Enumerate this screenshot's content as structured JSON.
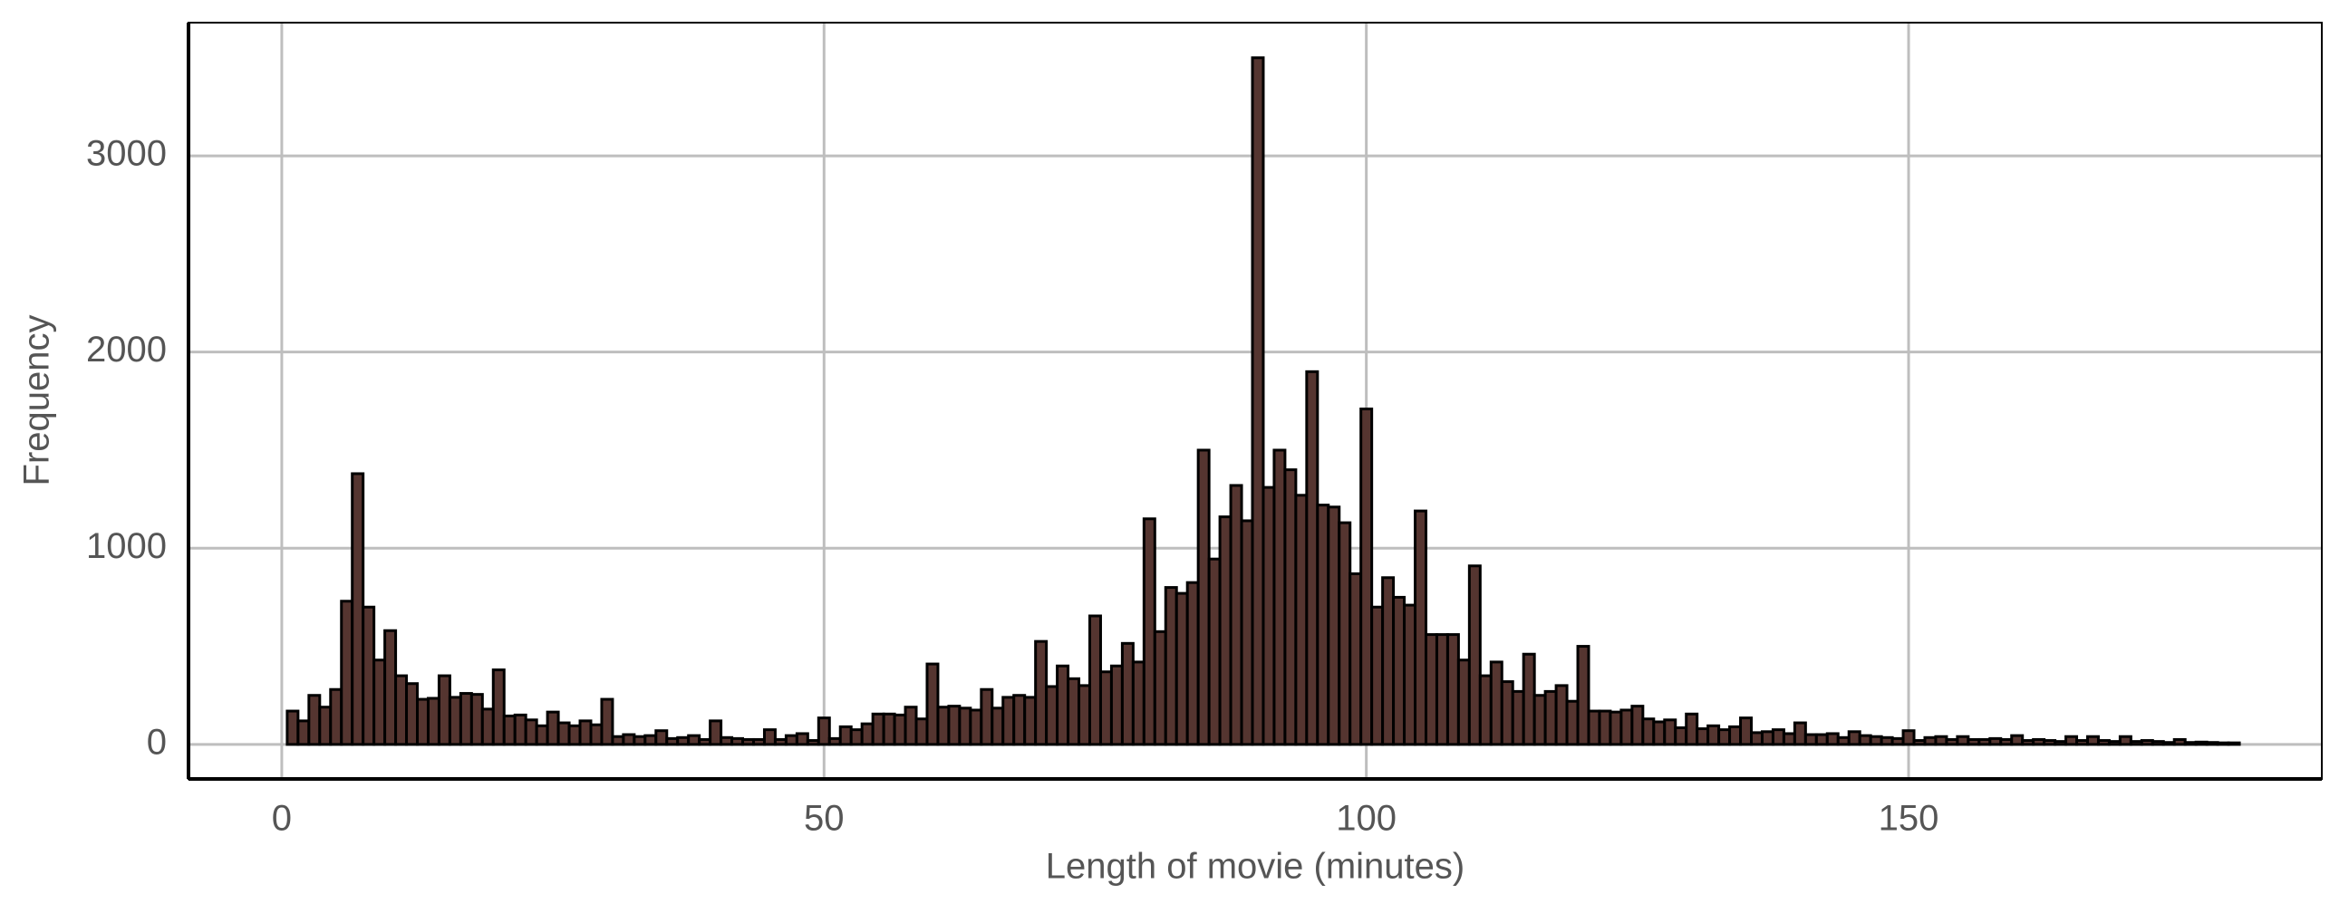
{
  "chart_data": {
    "type": "histogram",
    "x_label": "Length of movie (minutes)",
    "y_label": "Frequency",
    "color": "#553530",
    "edge_color": "#000000",
    "grid": true,
    "xlim": [
      -8.6,
      188.1
    ],
    "ylim": [
      -176,
      3679
    ],
    "xticks": [
      0,
      50,
      100,
      150
    ],
    "yticks": [
      0,
      1000,
      2000,
      3000
    ],
    "bins": [
      0.5,
      1.5,
      2.5,
      3.5,
      4.5,
      5.5,
      6.5,
      7.5,
      8.5,
      9.5,
      10.5,
      11.5,
      12.5,
      13.5,
      14.5,
      15.5,
      16.5,
      17.5,
      18.5,
      19.5,
      20.5,
      21.5,
      22.5,
      23.5,
      24.5,
      25.5,
      26.5,
      27.5,
      28.5,
      29.5,
      30.5,
      31.5,
      32.5,
      33.5,
      34.5,
      35.5,
      36.5,
      37.5,
      38.5,
      39.5,
      40.5,
      41.5,
      42.5,
      43.5,
      44.5,
      45.5,
      46.5,
      47.5,
      48.5,
      49.5,
      50.5,
      51.5,
      52.5,
      53.5,
      54.5,
      55.5,
      56.5,
      57.5,
      58.5,
      59.5,
      60.5,
      61.5,
      62.5,
      63.5,
      64.5,
      65.5,
      66.5,
      67.5,
      68.5,
      69.5,
      70.5,
      71.5,
      72.5,
      73.5,
      74.5,
      75.5,
      76.5,
      77.5,
      78.5,
      79.5,
      80.5,
      81.5,
      82.5,
      83.5,
      84.5,
      85.5,
      86.5,
      87.5,
      88.5,
      89.5,
      90.5,
      91.5,
      92.5,
      93.5,
      94.5,
      95.5,
      96.5,
      97.5,
      98.5,
      99.5,
      100.5,
      101.5,
      102.5,
      103.5,
      104.5,
      105.5,
      106.5,
      107.5,
      108.5,
      109.5,
      110.5,
      111.5,
      112.5,
      113.5,
      114.5,
      115.5,
      116.5,
      117.5,
      118.5,
      119.5,
      120.5,
      121.5,
      122.5,
      123.5,
      124.5,
      125.5,
      126.5,
      127.5,
      128.5,
      129.5,
      130.5,
      131.5,
      132.5,
      133.5,
      134.5,
      135.5,
      136.5,
      137.5,
      138.5,
      139.5,
      140.5,
      141.5,
      142.5,
      143.5,
      144.5,
      145.5,
      146.5,
      147.5,
      148.5,
      149.5,
      150.5,
      151.5,
      152.5,
      153.5,
      154.5,
      155.5,
      156.5,
      157.5,
      158.5,
      159.5,
      160.5,
      161.5,
      162.5,
      163.5,
      164.5,
      165.5,
      166.5,
      167.5,
      168.5,
      169.5,
      170.5,
      171.5,
      172.5,
      173.5,
      174.5,
      175.5,
      176.5,
      177.5,
      178.5,
      179.5,
      180.5
    ],
    "values": [
      170,
      120,
      250,
      190,
      280,
      730,
      1380,
      700,
      430,
      580,
      350,
      310,
      230,
      235,
      350,
      240,
      260,
      255,
      180,
      380,
      145,
      150,
      125,
      95,
      165,
      110,
      95,
      120,
      100,
      230,
      40,
      50,
      40,
      45,
      70,
      30,
      35,
      45,
      25,
      120,
      35,
      30,
      25,
      25,
      75,
      25,
      45,
      55,
      20,
      135,
      30,
      90,
      75,
      105,
      155,
      155,
      150,
      190,
      130,
      410,
      190,
      195,
      185,
      175,
      280,
      185,
      240,
      250,
      240,
      525,
      295,
      400,
      335,
      300,
      655,
      370,
      400,
      515,
      420,
      1150,
      575,
      800,
      770,
      825,
      1500,
      945,
      1160,
      1320,
      1140,
      3500,
      1310,
      1500,
      1400,
      1270,
      1900,
      1220,
      1210,
      1130,
      870,
      1710,
      700,
      850,
      750,
      710,
      1190,
      560,
      560,
      560,
      430,
      910,
      350,
      420,
      320,
      270,
      460,
      250,
      270,
      300,
      220,
      500,
      170,
      170,
      165,
      175,
      195,
      130,
      115,
      125,
      85,
      155,
      80,
      95,
      75,
      90,
      135,
      60,
      65,
      75,
      55,
      110,
      50,
      50,
      55,
      35,
      65,
      45,
      40,
      35,
      30,
      70,
      20,
      35,
      40,
      25,
      40,
      25,
      25,
      30,
      25,
      45,
      20,
      25,
      20,
      15,
      40,
      20,
      40,
      20,
      15,
      40,
      15,
      20,
      15,
      10,
      25,
      10,
      12,
      10,
      8,
      8
    ]
  }
}
